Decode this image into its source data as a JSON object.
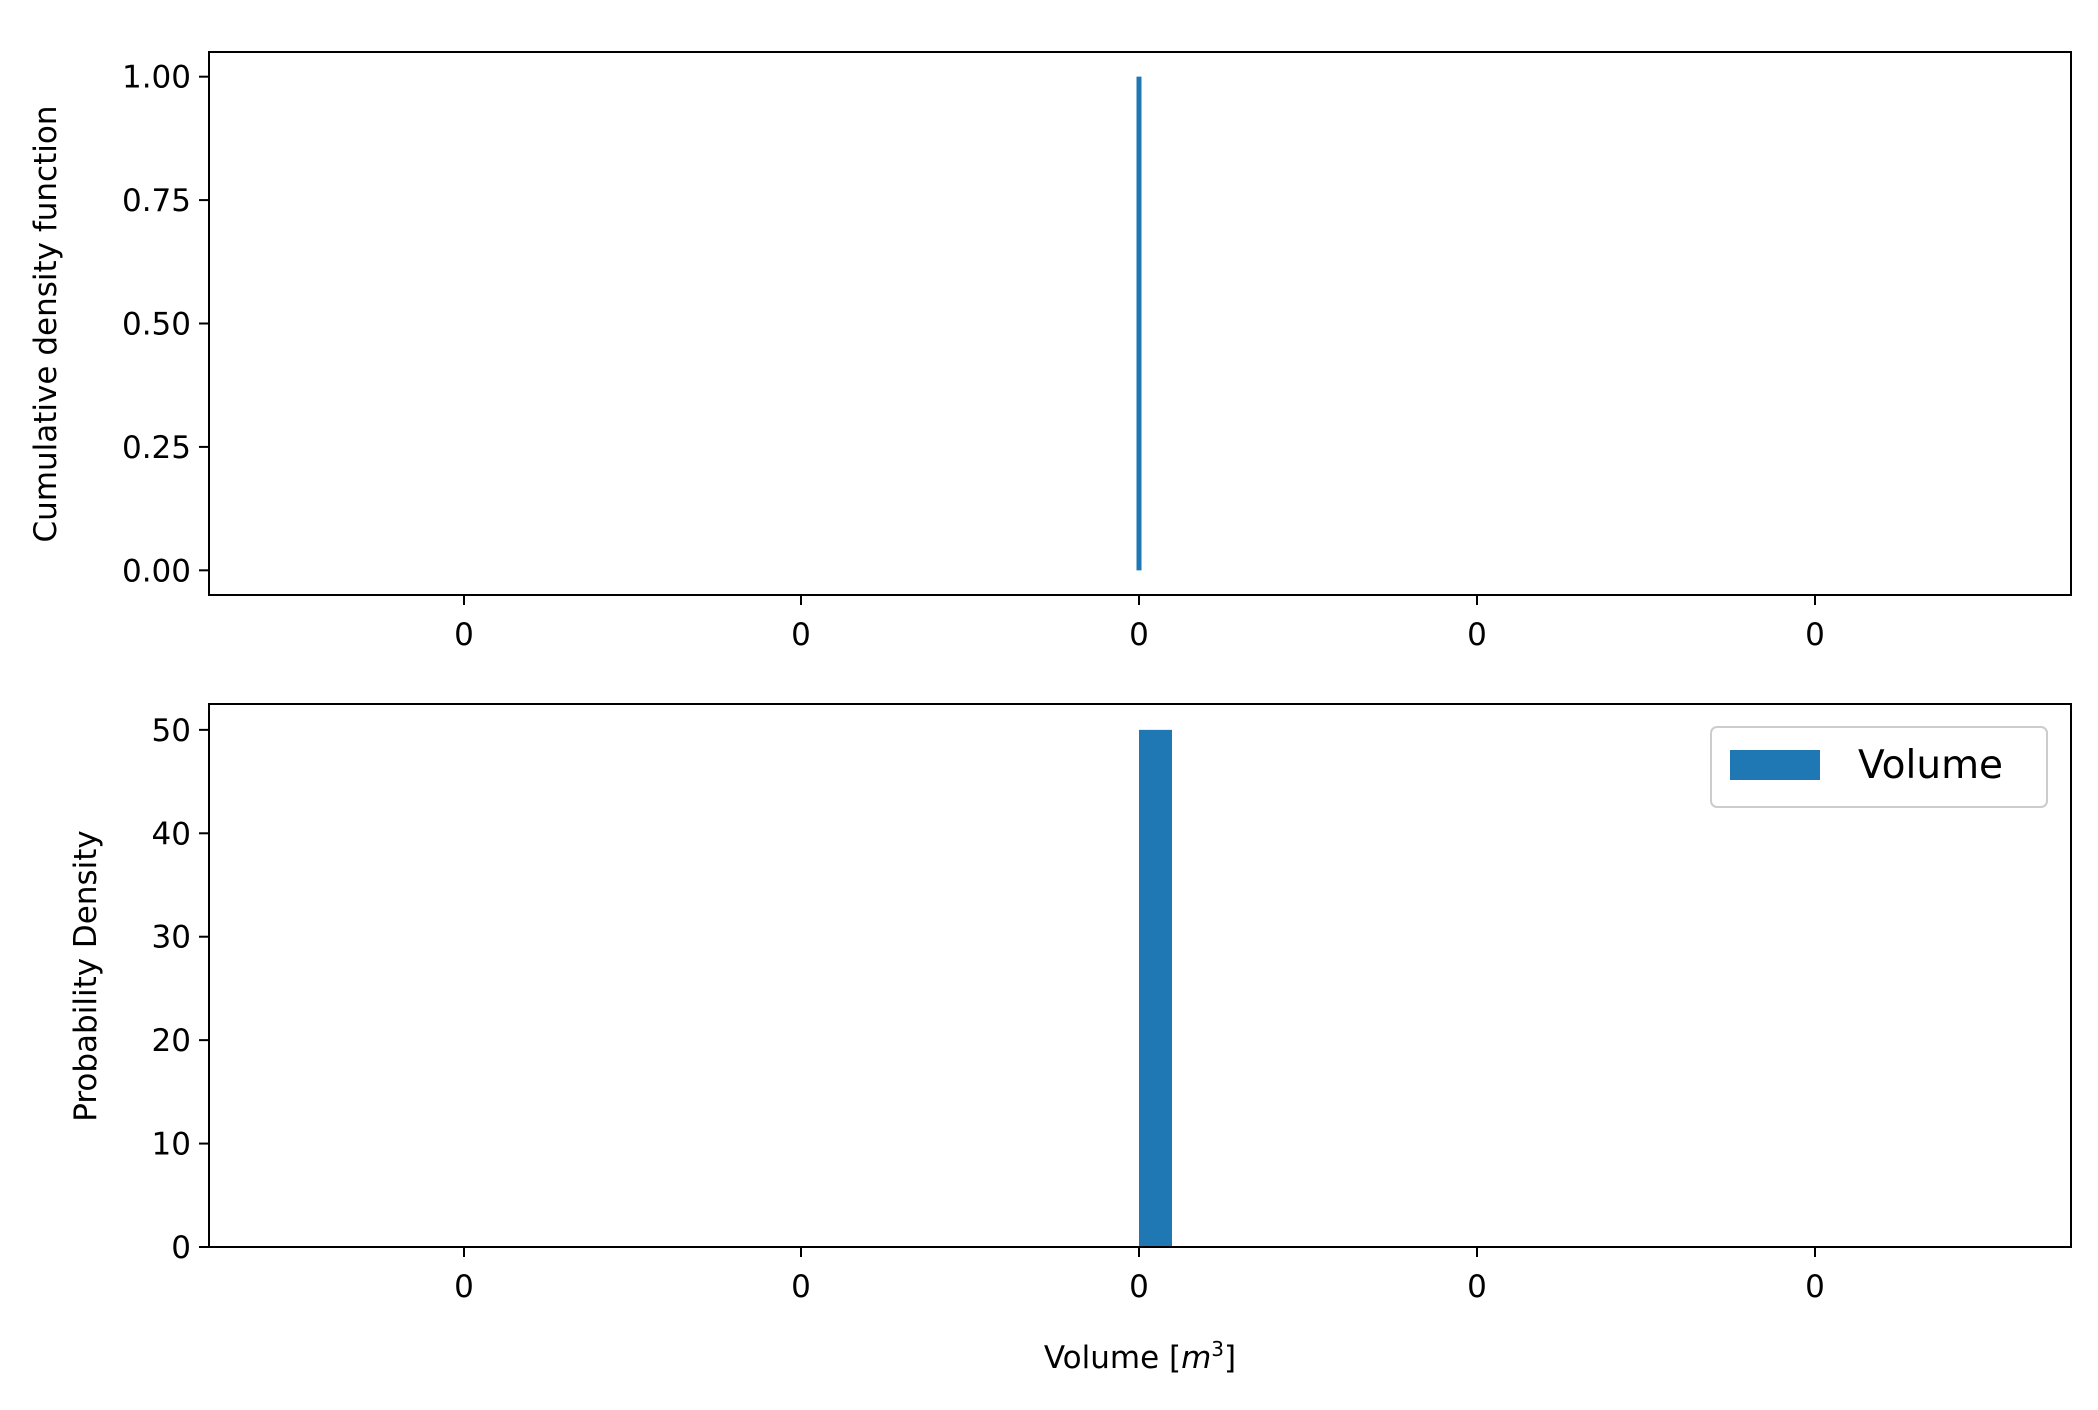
{
  "colors": {
    "series": "#1f77b4",
    "axes": "#000000",
    "background": "#ffffff"
  },
  "chart_data": [
    {
      "type": "line",
      "ylabel": "Cumulative density function",
      "xlabel": "",
      "x_tick_labels": [
        "0",
        "0",
        "0",
        "0",
        "0"
      ],
      "y_ticks": [
        "0.00",
        "0.25",
        "0.50",
        "0.75",
        "1.00"
      ],
      "ylim": [
        -0.05,
        1.05
      ],
      "grid": false,
      "series": [
        {
          "x": [
            0,
            0
          ],
          "y": [
            0.0,
            1.0
          ]
        }
      ]
    },
    {
      "type": "bar",
      "ylabel": "Probability Density",
      "xlabel": "Volume [m³]",
      "x_tick_labels": [
        "0",
        "0",
        "0",
        "0",
        "0"
      ],
      "y_ticks": [
        "0",
        "10",
        "20",
        "30",
        "40",
        "50"
      ],
      "ylim": [
        0,
        52.5
      ],
      "grid": false,
      "legend": {
        "entries": [
          "Volume"
        ],
        "position": "upper right"
      },
      "series": [
        {
          "name": "Volume",
          "x": [
            0
          ],
          "values": [
            50
          ]
        }
      ]
    }
  ]
}
